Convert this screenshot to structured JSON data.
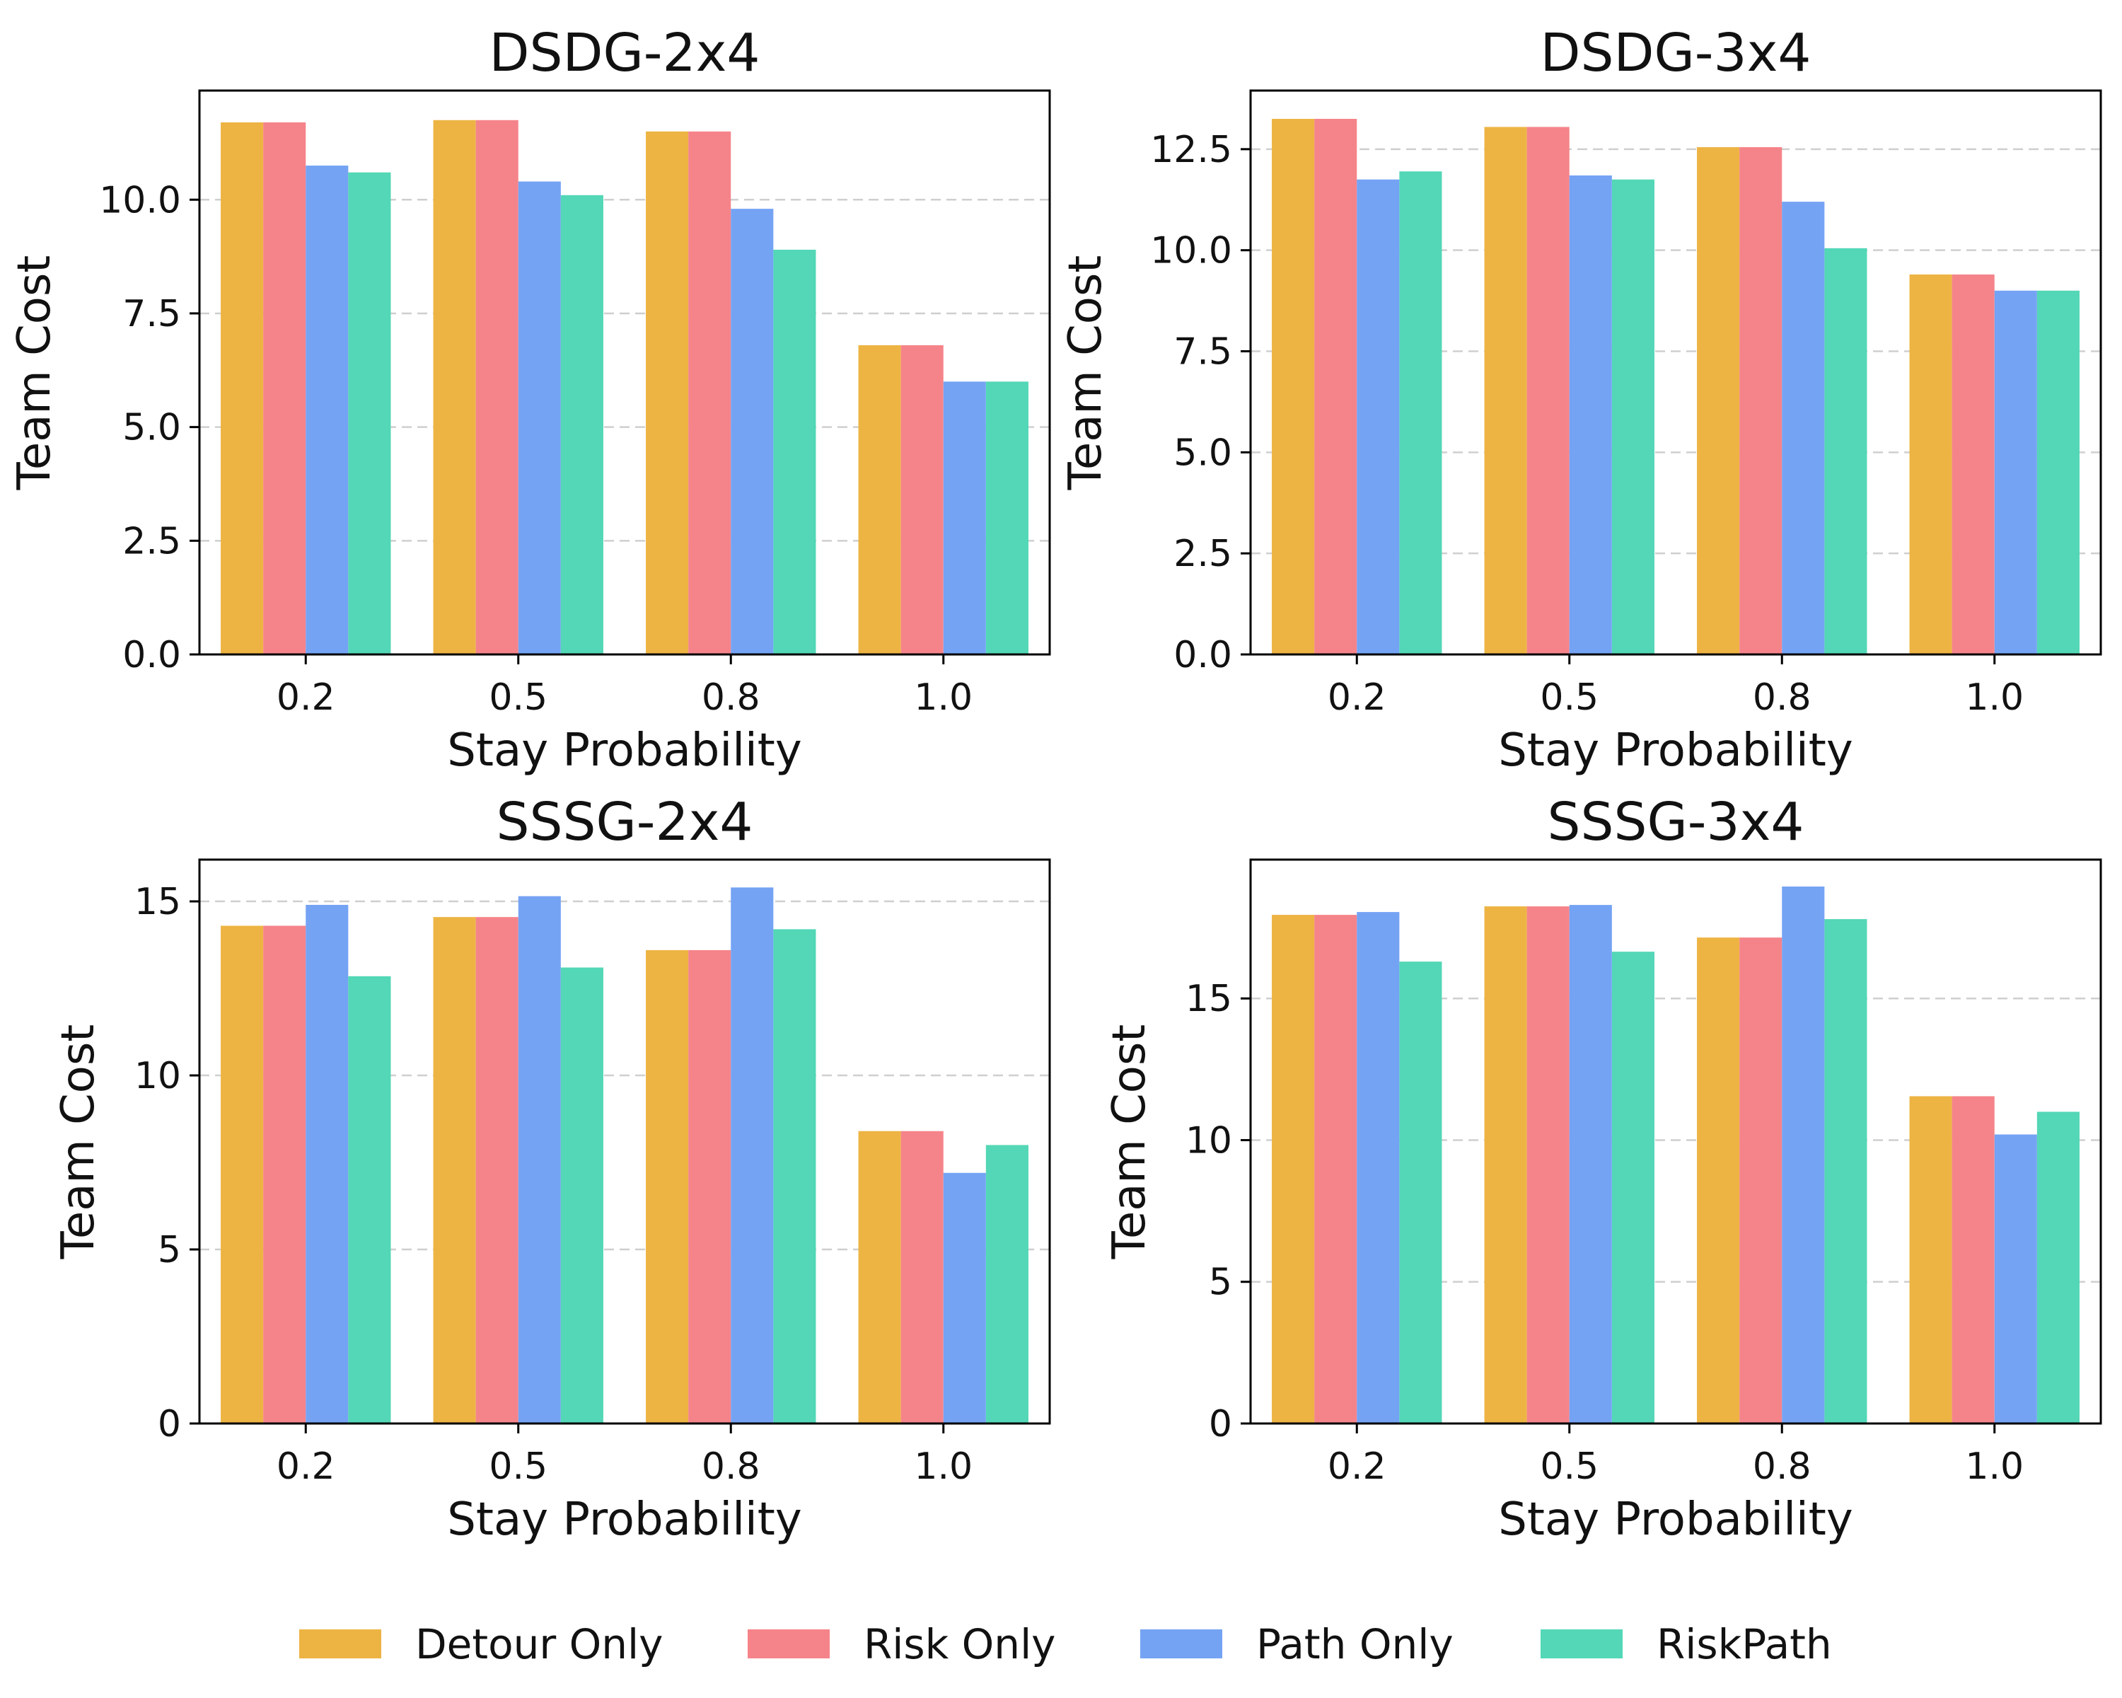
{
  "legend": [
    {
      "label": "Detour Only",
      "color": "#EDB443"
    },
    {
      "label": "Risk Only",
      "color": "#F5848A"
    },
    {
      "label": "Path Only",
      "color": "#75A3F4"
    },
    {
      "label": "RiskPath",
      "color": "#53D7B6"
    }
  ],
  "chart_data": [
    {
      "type": "bar",
      "title": "DSDG-2x4",
      "xlabel": "Stay Probability",
      "ylabel": "Team Cost",
      "categories": [
        "0.2",
        "0.5",
        "0.8",
        "1.0"
      ],
      "ylim": [
        0,
        12.4
      ],
      "yticks": [
        0,
        2.5,
        5,
        7.5,
        10
      ],
      "ytick_labels": [
        "0.0",
        "2.5",
        "5.0",
        "7.5",
        "10.0"
      ],
      "grid": "y-dashed",
      "series": [
        {
          "name": "Detour Only",
          "values": [
            11.7,
            11.75,
            11.5,
            6.8
          ]
        },
        {
          "name": "Risk Only",
          "values": [
            11.7,
            11.75,
            11.5,
            6.8
          ]
        },
        {
          "name": "Path Only",
          "values": [
            10.75,
            10.4,
            9.8,
            6.0
          ]
        },
        {
          "name": "RiskPath",
          "values": [
            10.6,
            10.1,
            8.9,
            6.0
          ]
        }
      ]
    },
    {
      "type": "bar",
      "title": "DSDG-3x4",
      "xlabel": "Stay Probability",
      "ylabel": "Team Cost",
      "categories": [
        "0.2",
        "0.5",
        "0.8",
        "1.0"
      ],
      "ylim": [
        0,
        13.95
      ],
      "yticks": [
        0,
        2.5,
        5,
        7.5,
        10,
        12.5
      ],
      "ytick_labels": [
        "0.0",
        "2.5",
        "5.0",
        "7.5",
        "10.0",
        "12.5"
      ],
      "grid": "y-dashed",
      "series": [
        {
          "name": "Detour Only",
          "values": [
            13.25,
            13.05,
            12.55,
            9.4
          ]
        },
        {
          "name": "Risk Only",
          "values": [
            13.25,
            13.05,
            12.55,
            9.4
          ]
        },
        {
          "name": "Path Only",
          "values": [
            11.75,
            11.85,
            11.2,
            9.0
          ]
        },
        {
          "name": "RiskPath",
          "values": [
            11.95,
            11.75,
            10.05,
            9.0
          ]
        }
      ]
    },
    {
      "type": "bar",
      "title": "SSSG-2x4",
      "xlabel": "Stay Probability",
      "ylabel": "Team Cost",
      "categories": [
        "0.2",
        "0.5",
        "0.8",
        "1.0"
      ],
      "ylim": [
        0,
        16.2
      ],
      "yticks": [
        0,
        5,
        10,
        15
      ],
      "ytick_labels": [
        "0",
        "5",
        "10",
        "15"
      ],
      "grid": "y-dashed",
      "series": [
        {
          "name": "Detour Only",
          "values": [
            14.3,
            14.55,
            13.6,
            8.4
          ]
        },
        {
          "name": "Risk Only",
          "values": [
            14.3,
            14.55,
            13.6,
            8.4
          ]
        },
        {
          "name": "Path Only",
          "values": [
            14.9,
            15.15,
            15.4,
            7.2
          ]
        },
        {
          "name": "RiskPath",
          "values": [
            12.85,
            13.1,
            14.2,
            8.0
          ]
        }
      ]
    },
    {
      "type": "bar",
      "title": "SSSG-3x4",
      "xlabel": "Stay Probability",
      "ylabel": "Team Cost",
      "categories": [
        "0.2",
        "0.5",
        "0.8",
        "1.0"
      ],
      "ylim": [
        0,
        19.9
      ],
      "yticks": [
        0,
        5,
        10,
        15
      ],
      "ytick_labels": [
        "0",
        "5",
        "10",
        "15"
      ],
      "grid": "y-dashed",
      "series": [
        {
          "name": "Detour Only",
          "values": [
            17.95,
            18.25,
            17.15,
            11.55
          ]
        },
        {
          "name": "Risk Only",
          "values": [
            17.95,
            18.25,
            17.15,
            11.55
          ]
        },
        {
          "name": "Path Only",
          "values": [
            18.05,
            18.3,
            18.95,
            10.2
          ]
        },
        {
          "name": "RiskPath",
          "values": [
            16.3,
            16.65,
            17.8,
            11.0
          ]
        }
      ]
    }
  ]
}
